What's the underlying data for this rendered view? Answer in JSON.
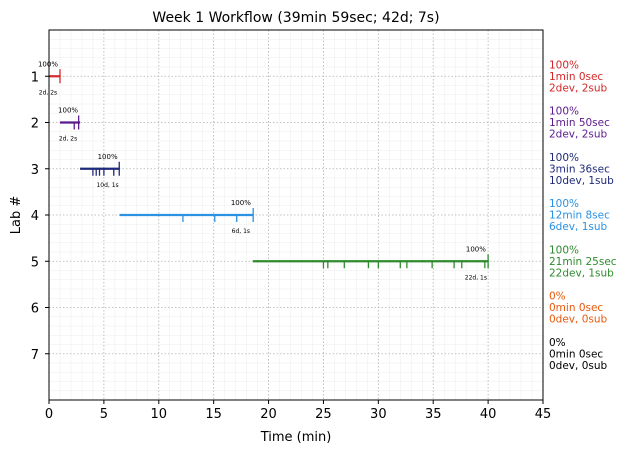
{
  "chart_data": {
    "type": "timeline",
    "title": "Week 1 Workflow (39min 59sec; 42d; 7s)",
    "xlabel": "Time (min)",
    "ylabel": "Lab #",
    "xlim": [
      0,
      45
    ],
    "ylim": [
      0,
      8
    ],
    "x_ticks": [
      "0",
      "5",
      "10",
      "15",
      "20",
      "25",
      "30",
      "35",
      "40",
      "45"
    ],
    "y_ticks": [
      "1",
      "2",
      "3",
      "4",
      "5",
      "6",
      "7"
    ],
    "grid": true,
    "colors": [
      "#d62728",
      "#5b1a8e",
      "#1f2a7a",
      "#2b91e3",
      "#2e8b2e",
      "#e8590c",
      "#000000"
    ],
    "labs": [
      {
        "lab": 1,
        "start": 0.0,
        "end": 1.0,
        "ticks": [
          1.0
        ],
        "pct_label": "100%",
        "counts_label": "2d, 2s",
        "summary": [
          "100%",
          "1min 0sec",
          "2dev, 2sub"
        ]
      },
      {
        "lab": 2,
        "start": 1.0,
        "end": 2.83,
        "ticks": [
          2.3,
          2.7
        ],
        "pct_label": "100%",
        "counts_label": "2d, 2s",
        "summary": [
          "100%",
          "1min 50sec",
          "2dev, 2sub"
        ]
      },
      {
        "lab": 3,
        "start": 2.83,
        "end": 6.43,
        "ticks": [
          4.0,
          4.3,
          4.6,
          5.0,
          5.9,
          6.4
        ],
        "pct_label": "100%",
        "counts_label": "10d, 1s",
        "summary": [
          "100%",
          "3min 36sec",
          "10dev, 1sub"
        ]
      },
      {
        "lab": 4,
        "start": 6.43,
        "end": 18.57,
        "ticks": [
          12.2,
          15.1,
          17.1,
          18.6
        ],
        "pct_label": "100%",
        "counts_label": "6d, 1s",
        "summary": [
          "100%",
          "12min 8sec",
          "6dev, 1sub"
        ]
      },
      {
        "lab": 5,
        "start": 18.57,
        "end": 39.98,
        "ticks": [
          25.0,
          25.4,
          26.9,
          29.1,
          30.0,
          32.0,
          32.6,
          34.9,
          36.9,
          37.6,
          39.7,
          40.0
        ],
        "pct_label": "100%",
        "counts_label": "22d, 1s",
        "summary": [
          "100%",
          "21min 25sec",
          "22dev, 1sub"
        ]
      },
      {
        "lab": 6,
        "start": null,
        "end": null,
        "ticks": [],
        "pct_label": "",
        "counts_label": "",
        "summary": [
          "0%",
          "0min 0sec",
          "0dev, 0sub"
        ]
      },
      {
        "lab": 7,
        "start": null,
        "end": null,
        "ticks": [],
        "pct_label": "",
        "counts_label": "",
        "summary": [
          "0%",
          "0min 0sec",
          "0dev, 0sub"
        ]
      }
    ]
  }
}
